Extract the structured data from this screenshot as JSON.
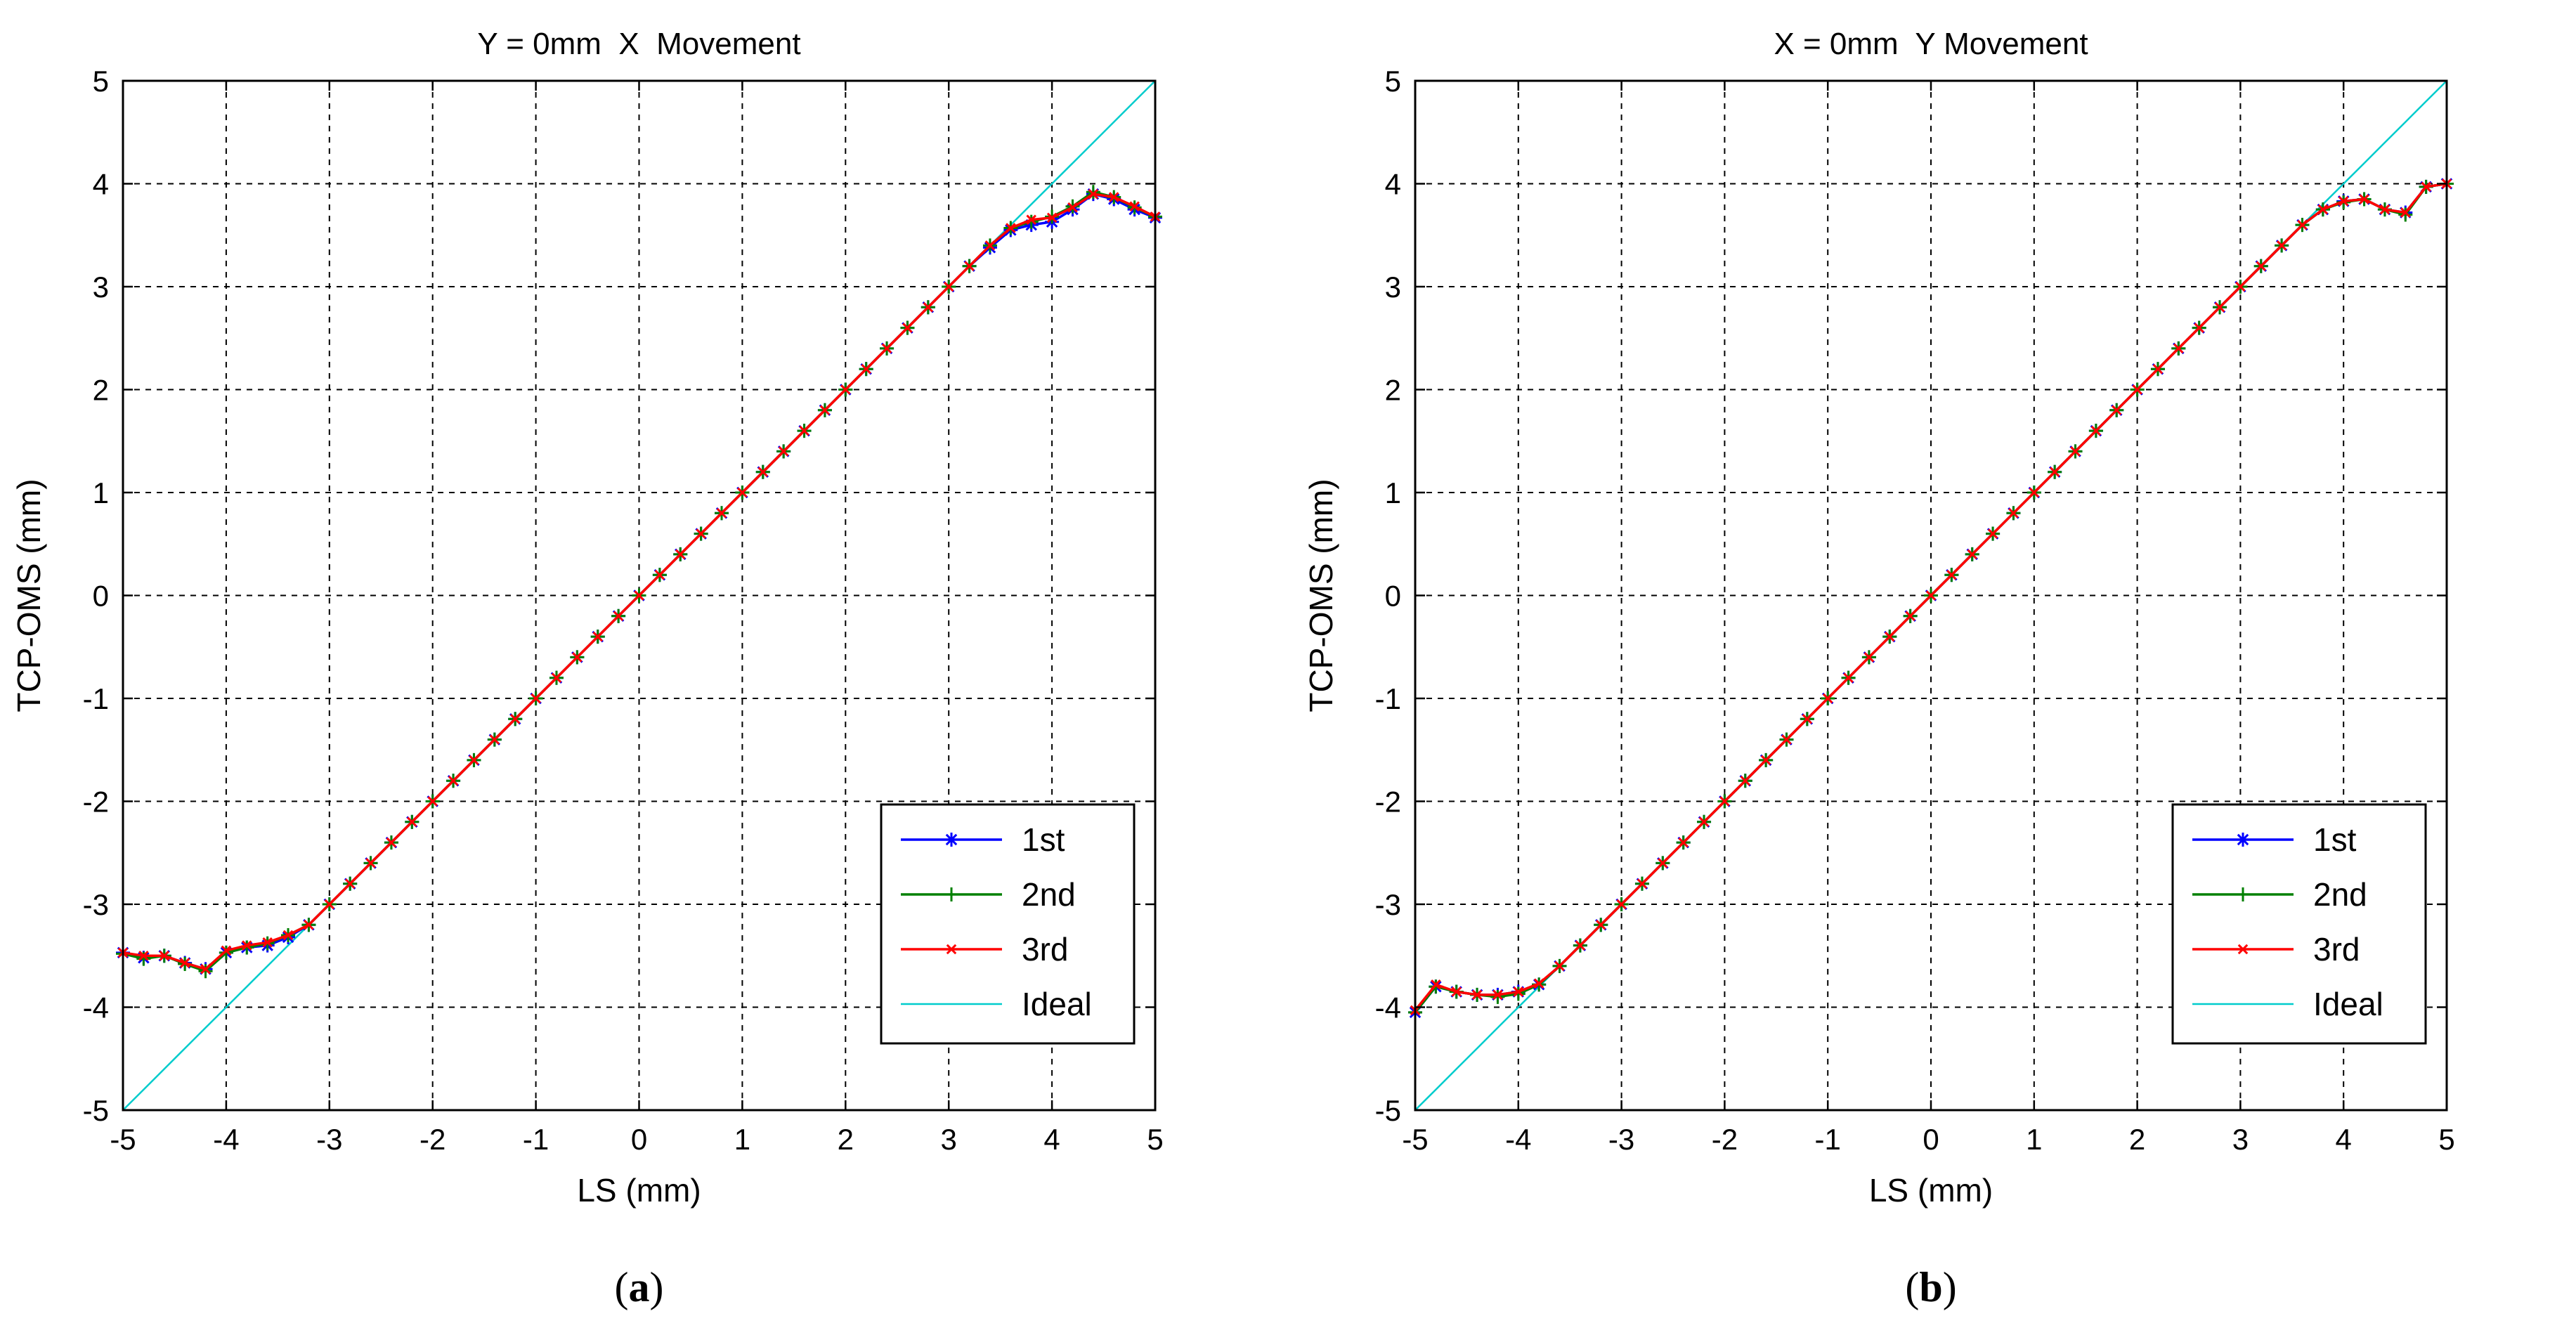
{
  "colors": {
    "series_1st": "#0000ff",
    "series_2nd": "#008000",
    "series_3rd": "#ff0000",
    "ideal": "#00cccc",
    "grid": "#000000"
  },
  "chart_data": [
    {
      "type": "line",
      "panel_label": "a",
      "title": "Y = 0mm  X  Movement",
      "xlabel": "LS (mm)",
      "ylabel": "TCP-OMS (mm)",
      "xlim": [
        -5,
        5
      ],
      "ylim": [
        -5,
        5
      ],
      "xticks": [
        "-5",
        "-4",
        "-3",
        "-2",
        "-1",
        "0",
        "1",
        "2",
        "3",
        "4",
        "5"
      ],
      "yticks": [
        "-5",
        "-4",
        "-3",
        "-2",
        "-1",
        "0",
        "1",
        "2",
        "3",
        "4",
        "5"
      ],
      "grid": true,
      "legend_position": "lower-right",
      "x": [
        -5.0,
        -4.8,
        -4.6,
        -4.4,
        -4.2,
        -4.0,
        -3.8,
        -3.6,
        -3.4,
        -3.2,
        -3.0,
        -2.8,
        -2.6,
        -2.4,
        -2.2,
        -2.0,
        -1.8,
        -1.6,
        -1.4,
        -1.2,
        -1.0,
        -0.8,
        -0.6,
        -0.4,
        -0.2,
        0.0,
        0.2,
        0.4,
        0.6,
        0.8,
        1.0,
        1.2,
        1.4,
        1.6,
        1.8,
        2.0,
        2.2,
        2.4,
        2.6,
        2.8,
        3.0,
        3.2,
        3.4,
        3.6,
        3.8,
        4.0,
        4.2,
        4.4,
        4.6,
        4.8,
        5.0
      ],
      "series": [
        {
          "name": "1st",
          "marker": "star",
          "values": [
            -3.47,
            -3.52,
            -3.5,
            -3.57,
            -3.63,
            -3.47,
            -3.42,
            -3.4,
            -3.32,
            -3.2,
            -3.0,
            -2.8,
            -2.6,
            -2.4,
            -2.2,
            -2.0,
            -1.8,
            -1.6,
            -1.4,
            -1.2,
            -1.0,
            -0.8,
            -0.6,
            -0.4,
            -0.2,
            0.0,
            0.2,
            0.4,
            0.6,
            0.8,
            1.0,
            1.2,
            1.4,
            1.6,
            1.8,
            2.0,
            2.2,
            2.4,
            2.6,
            2.8,
            3.0,
            3.2,
            3.38,
            3.55,
            3.6,
            3.63,
            3.75,
            3.9,
            3.85,
            3.75,
            3.67
          ]
        },
        {
          "name": "2nd",
          "marker": "plus",
          "values": [
            -3.48,
            -3.53,
            -3.5,
            -3.58,
            -3.65,
            -3.47,
            -3.42,
            -3.38,
            -3.3,
            -3.2,
            -3.0,
            -2.8,
            -2.6,
            -2.4,
            -2.2,
            -2.0,
            -1.8,
            -1.6,
            -1.4,
            -1.2,
            -1.0,
            -0.8,
            -0.6,
            -0.4,
            -0.2,
            0.0,
            0.2,
            0.4,
            0.6,
            0.8,
            1.0,
            1.2,
            1.4,
            1.6,
            1.8,
            2.0,
            2.2,
            2.4,
            2.6,
            2.8,
            3.0,
            3.2,
            3.4,
            3.57,
            3.63,
            3.68,
            3.78,
            3.92,
            3.87,
            3.77,
            3.68
          ]
        },
        {
          "name": "3rd",
          "marker": "x",
          "values": [
            -3.47,
            -3.5,
            -3.5,
            -3.57,
            -3.63,
            -3.45,
            -3.4,
            -3.37,
            -3.3,
            -3.2,
            -3.0,
            -2.8,
            -2.6,
            -2.4,
            -2.2,
            -2.0,
            -1.8,
            -1.6,
            -1.4,
            -1.2,
            -1.0,
            -0.8,
            -0.6,
            -0.4,
            -0.2,
            0.0,
            0.2,
            0.4,
            0.6,
            0.8,
            1.0,
            1.2,
            1.4,
            1.6,
            1.8,
            2.0,
            2.2,
            2.4,
            2.6,
            2.8,
            3.0,
            3.2,
            3.4,
            3.57,
            3.65,
            3.67,
            3.77,
            3.9,
            3.87,
            3.78,
            3.68
          ]
        },
        {
          "name": "Ideal",
          "marker": "none",
          "values": [
            -5.0,
            -4.8,
            -4.6,
            -4.4,
            -4.2,
            -4.0,
            -3.8,
            -3.6,
            -3.4,
            -3.2,
            -3.0,
            -2.8,
            -2.6,
            -2.4,
            -2.2,
            -2.0,
            -1.8,
            -1.6,
            -1.4,
            -1.2,
            -1.0,
            -0.8,
            -0.6,
            -0.4,
            -0.2,
            0.0,
            0.2,
            0.4,
            0.6,
            0.8,
            1.0,
            1.2,
            1.4,
            1.6,
            1.8,
            2.0,
            2.2,
            2.4,
            2.6,
            2.8,
            3.0,
            3.2,
            3.4,
            3.6,
            3.8,
            4.0,
            4.2,
            4.4,
            4.6,
            4.8,
            5.0
          ]
        }
      ]
    },
    {
      "type": "line",
      "panel_label": "b",
      "title": "X = 0mm  Y Movement",
      "xlabel": "LS (mm)",
      "ylabel": "TCP-OMS (mm)",
      "xlim": [
        -5,
        5
      ],
      "ylim": [
        -5,
        5
      ],
      "xticks": [
        "-5",
        "-4",
        "-3",
        "-2",
        "-1",
        "0",
        "1",
        "2",
        "3",
        "4",
        "5"
      ],
      "yticks": [
        "-5",
        "-4",
        "-3",
        "-2",
        "-1",
        "0",
        "1",
        "2",
        "3",
        "4",
        "5"
      ],
      "grid": true,
      "legend_position": "lower-right",
      "x": [
        -5.0,
        -4.8,
        -4.6,
        -4.4,
        -4.2,
        -4.0,
        -3.8,
        -3.6,
        -3.4,
        -3.2,
        -3.0,
        -2.8,
        -2.6,
        -2.4,
        -2.2,
        -2.0,
        -1.8,
        -1.6,
        -1.4,
        -1.2,
        -1.0,
        -0.8,
        -0.6,
        -0.4,
        -0.2,
        0.0,
        0.2,
        0.4,
        0.6,
        0.8,
        1.0,
        1.2,
        1.4,
        1.6,
        1.8,
        2.0,
        2.2,
        2.4,
        2.6,
        2.8,
        3.0,
        3.2,
        3.4,
        3.6,
        3.8,
        4.0,
        4.2,
        4.4,
        4.6,
        4.8,
        5.0
      ],
      "series": [
        {
          "name": "1st",
          "marker": "star",
          "values": [
            -4.05,
            -3.8,
            -3.85,
            -3.88,
            -3.88,
            -3.85,
            -3.78,
            -3.6,
            -3.4,
            -3.2,
            -3.0,
            -2.8,
            -2.6,
            -2.4,
            -2.2,
            -2.0,
            -1.8,
            -1.6,
            -1.4,
            -1.2,
            -1.0,
            -0.8,
            -0.6,
            -0.4,
            -0.2,
            0.0,
            0.2,
            0.4,
            0.6,
            0.8,
            1.0,
            1.2,
            1.4,
            1.6,
            1.8,
            2.0,
            2.2,
            2.4,
            2.6,
            2.8,
            3.0,
            3.2,
            3.4,
            3.6,
            3.75,
            3.83,
            3.85,
            3.75,
            3.72,
            3.97,
            4.0
          ]
        },
        {
          "name": "2nd",
          "marker": "plus",
          "values": [
            -4.05,
            -3.8,
            -3.85,
            -3.88,
            -3.9,
            -3.87,
            -3.78,
            -3.6,
            -3.4,
            -3.2,
            -3.0,
            -2.8,
            -2.6,
            -2.4,
            -2.2,
            -2.0,
            -1.8,
            -1.6,
            -1.4,
            -1.2,
            -1.0,
            -0.8,
            -0.6,
            -0.4,
            -0.2,
            0.0,
            0.2,
            0.4,
            0.6,
            0.8,
            1.0,
            1.2,
            1.4,
            1.6,
            1.8,
            2.0,
            2.2,
            2.4,
            2.6,
            2.8,
            3.0,
            3.2,
            3.4,
            3.6,
            3.75,
            3.82,
            3.85,
            3.75,
            3.7,
            3.97,
            4.0
          ]
        },
        {
          "name": "3rd",
          "marker": "x",
          "values": [
            -4.03,
            -3.78,
            -3.85,
            -3.88,
            -3.88,
            -3.85,
            -3.77,
            -3.6,
            -3.4,
            -3.2,
            -3.0,
            -2.8,
            -2.6,
            -2.4,
            -2.2,
            -2.0,
            -1.8,
            -1.6,
            -1.4,
            -1.2,
            -1.0,
            -0.8,
            -0.6,
            -0.4,
            -0.2,
            0.0,
            0.2,
            0.4,
            0.6,
            0.8,
            1.0,
            1.2,
            1.4,
            1.6,
            1.8,
            2.0,
            2.2,
            2.4,
            2.6,
            2.8,
            3.0,
            3.2,
            3.4,
            3.6,
            3.75,
            3.83,
            3.85,
            3.75,
            3.72,
            3.97,
            4.0
          ]
        },
        {
          "name": "Ideal",
          "marker": "none",
          "values": [
            -5.0,
            -4.8,
            -4.6,
            -4.4,
            -4.2,
            -4.0,
            -3.8,
            -3.6,
            -3.4,
            -3.2,
            -3.0,
            -2.8,
            -2.6,
            -2.4,
            -2.2,
            -2.0,
            -1.8,
            -1.6,
            -1.4,
            -1.2,
            -1.0,
            -0.8,
            -0.6,
            -0.4,
            -0.2,
            0.0,
            0.2,
            0.4,
            0.6,
            0.8,
            1.0,
            1.2,
            1.4,
            1.6,
            1.8,
            2.0,
            2.2,
            2.4,
            2.6,
            2.8,
            3.0,
            3.2,
            3.4,
            3.6,
            3.8,
            4.0,
            4.2,
            4.4,
            4.6,
            4.8,
            5.0
          ]
        }
      ]
    }
  ]
}
